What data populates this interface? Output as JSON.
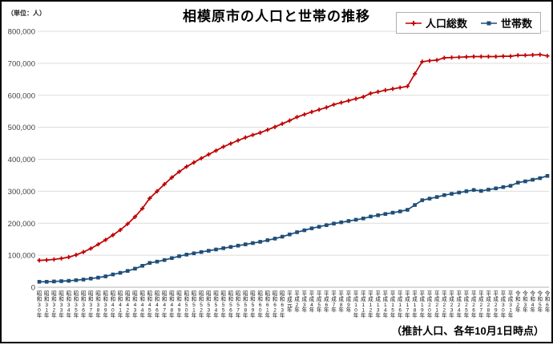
{
  "chart_data": {
    "type": "line",
    "title": "相模原市の人口と世帯の推移",
    "unit_label": "（単位：人）",
    "caption": "（推計人口、各年10月1日時点）",
    "grid": true,
    "legend_position": "top-right",
    "ylim": [
      0,
      800000
    ],
    "y_ticks": [
      {
        "value": 0,
        "label": "0"
      },
      {
        "value": 100000,
        "label": "100,000"
      },
      {
        "value": 200000,
        "label": "200,000"
      },
      {
        "value": 300000,
        "label": "300,000"
      },
      {
        "value": 400000,
        "label": "400,000"
      },
      {
        "value": 500000,
        "label": "500,000"
      },
      {
        "value": 600000,
        "label": "600,000"
      },
      {
        "value": 700000,
        "label": "700,000"
      },
      {
        "value": 800000,
        "label": "800,000"
      }
    ],
    "categories": [
      "昭和30年",
      "昭和31年",
      "昭和32年",
      "昭和33年",
      "昭和34年",
      "昭和35年",
      "昭和36年",
      "昭和37年",
      "昭和38年",
      "昭和39年",
      "昭和40年",
      "昭和41年",
      "昭和42年",
      "昭和43年",
      "昭和44年",
      "昭和45年",
      "昭和46年",
      "昭和47年",
      "昭和48年",
      "昭和49年",
      "昭和50年",
      "昭和51年",
      "昭和52年",
      "昭和53年",
      "昭和54年",
      "昭和55年",
      "昭和56年",
      "昭和57年",
      "昭和58年",
      "昭和59年",
      "昭和60年",
      "昭和61年",
      "昭和62年",
      "昭和63年",
      "平成元年",
      "平成2年",
      "平成3年",
      "平成4年",
      "平成5年",
      "平成6年",
      "平成7年",
      "平成8年",
      "平成9年",
      "平成10年",
      "平成11年",
      "平成12年",
      "平成13年",
      "平成14年",
      "平成15年",
      "平成16年",
      "平成17年",
      "平成18年",
      "平成19年",
      "平成20年",
      "平成21年",
      "平成22年",
      "平成23年",
      "平成24年",
      "平成25年",
      "平成26年",
      "平成27年",
      "平成28年",
      "平成29年",
      "平成30年",
      "平成31年",
      "令和2年",
      "令和3年",
      "令和4年",
      "令和5年",
      "令和6年"
    ],
    "series": [
      {
        "name": "人口総数",
        "color": "#c00000",
        "marker": "plus",
        "values": [
          84000,
          85000,
          87000,
          90000,
          94000,
          101000,
          110000,
          121000,
          134000,
          148000,
          163000,
          179000,
          198000,
          220000,
          246000,
          278000,
          300000,
          322000,
          343000,
          361000,
          377000,
          390000,
          403000,
          415000,
          427000,
          439000,
          449000,
          459000,
          468000,
          476000,
          483000,
          492000,
          501000,
          511000,
          521000,
          532000,
          540000,
          548000,
          555000,
          562000,
          571000,
          577000,
          583000,
          589000,
          595000,
          606000,
          611000,
          616000,
          620000,
          624000,
          628000,
          667000,
          705000,
          708000,
          710000,
          717000,
          718000,
          719000,
          720000,
          721000,
          721000,
          721000,
          721000,
          722000,
          722000,
          725000,
          725000,
          726000,
          727000,
          723000
        ]
      },
      {
        "name": "世帯数",
        "color": "#1f4e79",
        "marker": "square",
        "values": [
          17000,
          17000,
          18000,
          19000,
          20000,
          22000,
          24000,
          27000,
          30000,
          34000,
          40000,
          45000,
          51000,
          58000,
          67000,
          76000,
          80000,
          85000,
          91000,
          97000,
          102000,
          106000,
          110000,
          114000,
          118000,
          122000,
          126000,
          130000,
          134000,
          138000,
          142000,
          147000,
          152000,
          158000,
          165000,
          172000,
          178000,
          184000,
          189000,
          194000,
          199000,
          203000,
          207000,
          211000,
          215000,
          221000,
          225000,
          229000,
          233000,
          237000,
          242000,
          257000,
          272000,
          277000,
          282000,
          288000,
          292000,
          296000,
          300000,
          304000,
          301000,
          305000,
          309000,
          313000,
          317000,
          327000,
          331000,
          336000,
          341000,
          348000
        ]
      }
    ],
    "grid_color": "#dcdcdc",
    "axis_label_color": "#404040"
  }
}
